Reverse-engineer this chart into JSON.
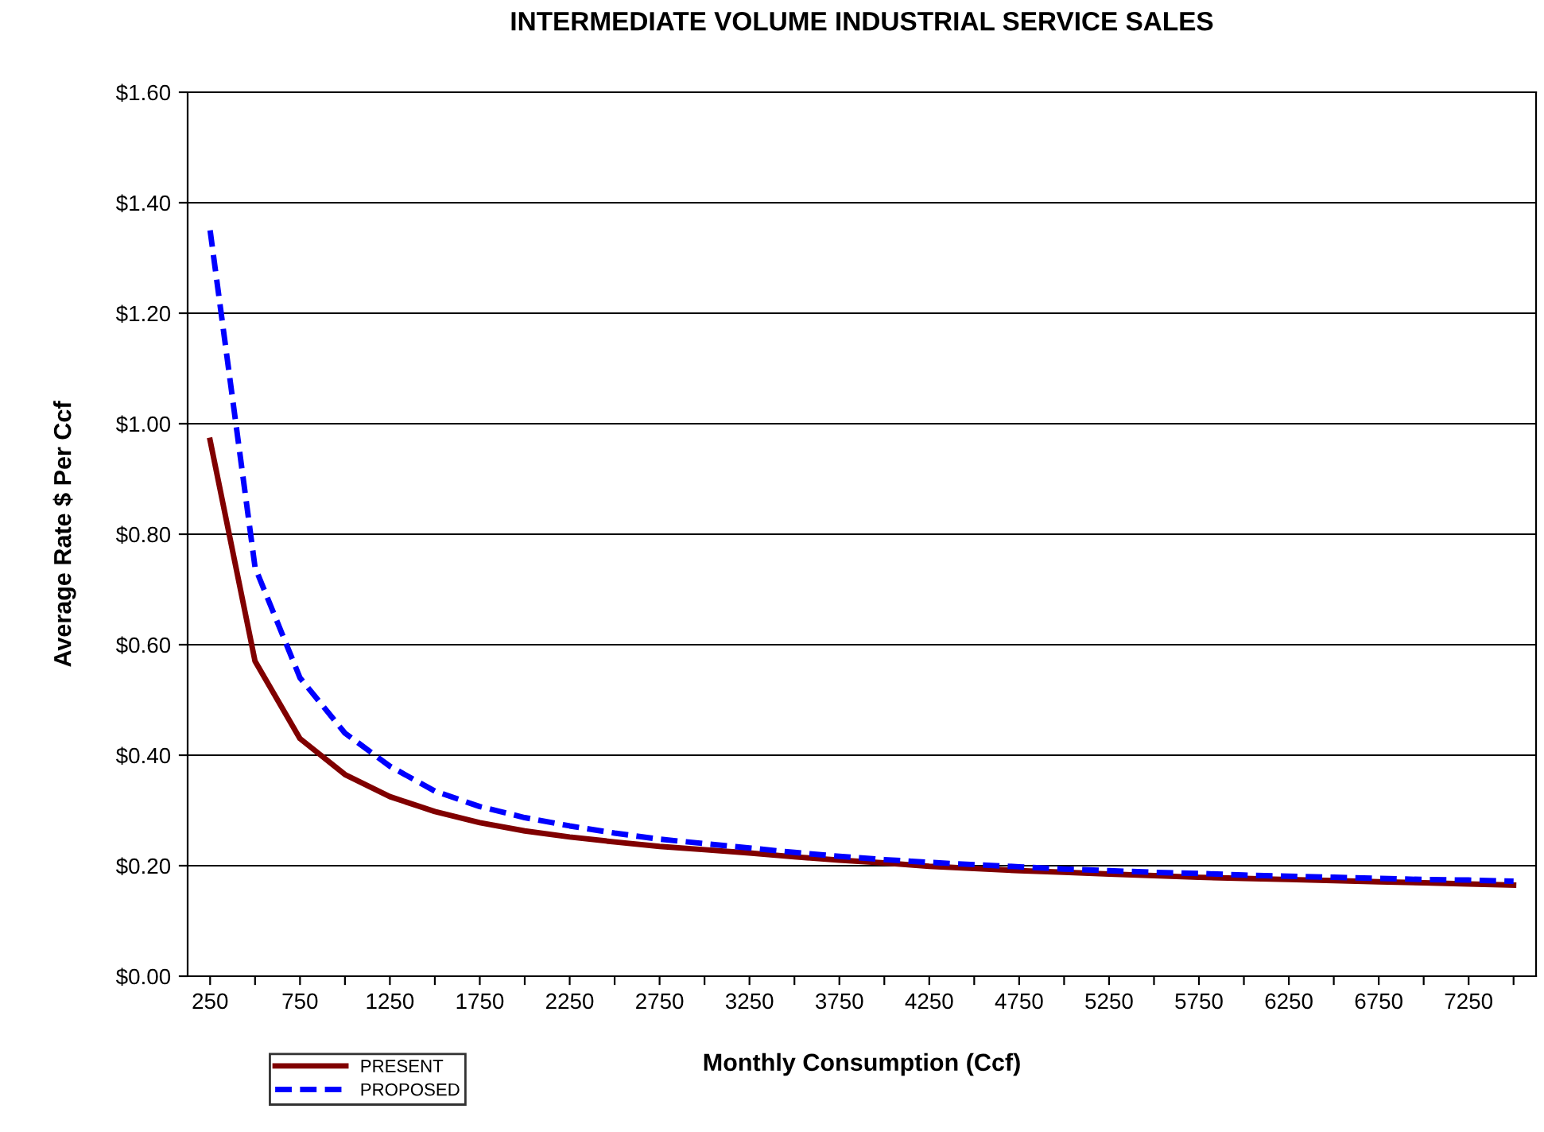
{
  "chart_data": {
    "type": "line",
    "title": "INTERMEDIATE VOLUME INDUSTRIAL SERVICE SALES",
    "xlabel": "Monthly Consumption (Ccf)",
    "ylabel": "Average Rate $ Per Ccf",
    "categories": [
      "250",
      null,
      "750",
      null,
      "1250",
      null,
      "1750",
      null,
      "2250",
      null,
      "2750",
      null,
      "3250",
      null,
      "3750",
      null,
      "4250",
      null,
      "4750",
      null,
      "5250",
      null,
      "5750",
      null,
      "6250",
      null,
      "6750",
      null,
      "7250",
      null
    ],
    "series": [
      {
        "name": "PRESENT",
        "color": "#800000",
        "line_style": "solid",
        "values": [
          0.97,
          0.57,
          0.43,
          0.365,
          0.325,
          0.298,
          0.278,
          0.263,
          0.252,
          0.243,
          0.235,
          0.229,
          0.223,
          0.216,
          0.21,
          0.205,
          0.199,
          0.195,
          0.191,
          0.188,
          0.185,
          0.182,
          0.179,
          0.177,
          0.175,
          0.173,
          0.171,
          0.169,
          0.167,
          0.165
        ]
      },
      {
        "name": "PROPOSED",
        "color": "#0000ff",
        "line_style": "dashed",
        "values": [
          1.35,
          0.74,
          0.54,
          0.44,
          0.38,
          0.335,
          0.307,
          0.287,
          0.272,
          0.259,
          0.248,
          0.24,
          0.232,
          0.224,
          0.217,
          0.211,
          0.206,
          0.202,
          0.198,
          0.194,
          0.191,
          0.188,
          0.186,
          0.183,
          0.181,
          0.179,
          0.177,
          0.175,
          0.174,
          0.172
        ]
      }
    ],
    "ylim": [
      0,
      1.6
    ],
    "yticks": [
      {
        "value": 0,
        "label": "$0.00"
      },
      {
        "value": 0.2,
        "label": "$0.20"
      },
      {
        "value": 0.4,
        "label": "$0.40"
      },
      {
        "value": 0.6,
        "label": "$0.60"
      },
      {
        "value": 0.8,
        "label": "$0.80"
      },
      {
        "value": 1.0,
        "label": "$1.00"
      },
      {
        "value": 1.2,
        "label": "$1.20"
      },
      {
        "value": 1.4,
        "label": "$1.40"
      },
      {
        "value": 1.6,
        "label": "$1.60"
      }
    ],
    "grid": "y",
    "legend": "bottom left",
    "marker": "none"
  }
}
